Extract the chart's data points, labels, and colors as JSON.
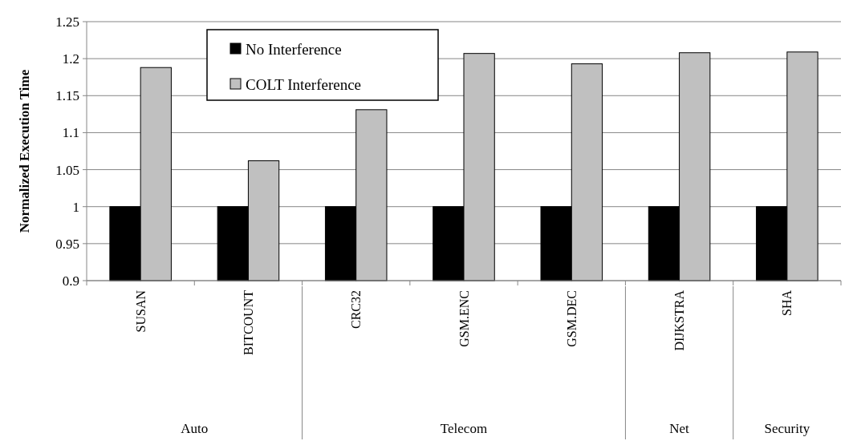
{
  "chart_data": {
    "type": "bar",
    "ylabel": "Normalized Execution Time",
    "categories": [
      "SUSAN",
      "BITCOUNT",
      "CRC32",
      "GSM.ENC",
      "GSM.DEC",
      "DIJKSTRA",
      "SHA"
    ],
    "series": [
      {
        "name": "No Interference",
        "color": "#000000",
        "values": [
          1,
          1,
          1,
          1,
          1,
          1,
          1
        ]
      },
      {
        "name": "COLT Interference",
        "color": "#c0c0c0",
        "values": [
          1.188,
          1.062,
          1.131,
          1.207,
          1.193,
          1.208,
          1.209
        ]
      }
    ],
    "ylim": [
      0.9,
      1.25
    ],
    "yticks": [
      0.9,
      0.95,
      1,
      1.05,
      1.1,
      1.15,
      1.2,
      1.25
    ],
    "grid": "y",
    "legend": "top",
    "annotations": [
      "Auto",
      "Telecom",
      "Net",
      "Security"
    ]
  }
}
